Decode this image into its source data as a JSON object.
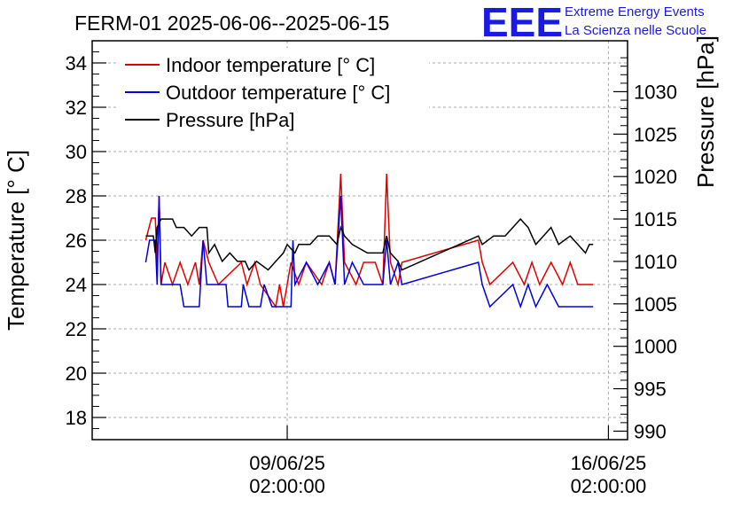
{
  "chart_data": {
    "type": "line",
    "title": "FERM-01 2025-06-06--2025-06-15",
    "ylabel_left": "Temperature [° C]",
    "ylabel_right": "Pressure [hPa]",
    "x_ticks": [
      {
        "date": "2025-06-09T02:00:00",
        "line1": "09/06/25",
        "line2": "02:00:00"
      },
      {
        "date": "2025-06-16T02:00:00",
        "line1": "16/06/25",
        "line2": "02:00:00"
      }
    ],
    "xlim": [
      "2025-06-04T20:00:00",
      "2025-06-16T12:00:00"
    ],
    "ylim_left": [
      17,
      35
    ],
    "yticks_left": [
      18,
      20,
      22,
      24,
      26,
      28,
      30,
      32,
      34
    ],
    "ylim_right": [
      989,
      1036
    ],
    "yticks_right": [
      990,
      995,
      1000,
      1005,
      1010,
      1015,
      1020,
      1025,
      1030
    ],
    "grid": true,
    "legend_position": "top-left",
    "series": [
      {
        "name": "Indoor temperature [° C]",
        "color": "#e00000",
        "axis": "left",
        "points": [
          [
            "2025-06-06T00:00:00",
            26
          ],
          [
            "2025-06-06T03:00:00",
            27
          ],
          [
            "2025-06-06T05:00:00",
            27
          ],
          [
            "2025-06-06T06:00:00",
            25
          ],
          [
            "2025-06-06T07:00:00",
            28
          ],
          [
            "2025-06-06T08:00:00",
            24
          ],
          [
            "2025-06-06T10:00:00",
            25
          ],
          [
            "2025-06-06T14:00:00",
            24
          ],
          [
            "2025-06-06T18:00:00",
            25
          ],
          [
            "2025-06-06T22:00:00",
            24
          ],
          [
            "2025-06-07T02:00:00",
            25
          ],
          [
            "2025-06-07T04:00:00",
            24
          ],
          [
            "2025-06-07T06:00:00",
            26
          ],
          [
            "2025-06-07T09:00:00",
            25
          ],
          [
            "2025-06-07T14:00:00",
            24
          ],
          [
            "2025-06-08T02:00:00",
            25
          ],
          [
            "2025-06-08T05:00:00",
            24
          ],
          [
            "2025-06-08T09:00:00",
            25
          ],
          [
            "2025-06-08T12:00:00",
            24
          ],
          [
            "2025-06-08T20:00:00",
            23
          ],
          [
            "2025-06-08T22:00:00",
            24
          ],
          [
            "2025-06-09T00:00:00",
            23
          ],
          [
            "2025-06-09T02:00:00",
            24
          ],
          [
            "2025-06-09T04:00:00",
            25
          ],
          [
            "2025-06-09T08:00:00",
            24
          ],
          [
            "2025-06-09T12:00:00",
            25
          ],
          [
            "2025-06-09T20:00:00",
            24
          ],
          [
            "2025-06-10T00:00:00",
            25
          ],
          [
            "2025-06-10T03:00:00",
            24
          ],
          [
            "2025-06-10T06:00:00",
            29
          ],
          [
            "2025-06-10T08:00:00",
            25
          ],
          [
            "2025-06-10T14:00:00",
            24
          ],
          [
            "2025-06-10T18:00:00",
            25
          ],
          [
            "2025-06-11T00:00:00",
            25
          ],
          [
            "2025-06-11T04:00:00",
            24
          ],
          [
            "2025-06-11T06:00:00",
            29
          ],
          [
            "2025-06-11T08:00:00",
            25
          ],
          [
            "2025-06-11T12:00:00",
            24
          ],
          [
            "2025-06-11T14:00:00",
            25
          ],
          [
            "2025-06-13T06:00:00",
            26
          ],
          [
            "2025-06-13T08:00:00",
            25
          ],
          [
            "2025-06-13T12:00:00",
            24
          ],
          [
            "2025-06-14T00:00:00",
            25
          ],
          [
            "2025-06-14T06:00:00",
            24
          ],
          [
            "2025-06-14T10:00:00",
            25
          ],
          [
            "2025-06-14T14:00:00",
            24
          ],
          [
            "2025-06-14T20:00:00",
            25
          ],
          [
            "2025-06-15T02:00:00",
            24
          ],
          [
            "2025-06-15T06:00:00",
            25
          ],
          [
            "2025-06-15T10:00:00",
            24
          ],
          [
            "2025-06-15T18:00:00",
            24
          ]
        ]
      },
      {
        "name": "Outdoor temperature [° C]",
        "color": "#0000e0",
        "axis": "left",
        "points": [
          [
            "2025-06-06T00:00:00",
            25
          ],
          [
            "2025-06-06T02:00:00",
            26
          ],
          [
            "2025-06-06T05:00:00",
            26
          ],
          [
            "2025-06-06T06:00:00",
            24
          ],
          [
            "2025-06-06T07:00:00",
            28
          ],
          [
            "2025-06-06T08:00:00",
            24
          ],
          [
            "2025-06-06T18:00:00",
            24
          ],
          [
            "2025-06-06T20:00:00",
            23
          ],
          [
            "2025-06-07T04:00:00",
            23
          ],
          [
            "2025-06-07T06:00:00",
            26
          ],
          [
            "2025-06-07T08:00:00",
            24
          ],
          [
            "2025-06-07T18:00:00",
            24
          ],
          [
            "2025-06-07T19:00:00",
            23
          ],
          [
            "2025-06-08T02:00:00",
            23
          ],
          [
            "2025-06-08T03:00:00",
            24
          ],
          [
            "2025-06-08T06:00:00",
            23
          ],
          [
            "2025-06-08T12:00:00",
            23
          ],
          [
            "2025-06-08T14:00:00",
            24
          ],
          [
            "2025-06-08T18:00:00",
            23
          ],
          [
            "2025-06-09T04:00:00",
            23
          ],
          [
            "2025-06-09T05:00:00",
            26
          ],
          [
            "2025-06-09T06:00:00",
            24
          ],
          [
            "2025-06-09T12:00:00",
            25
          ],
          [
            "2025-06-09T18:00:00",
            24
          ],
          [
            "2025-06-10T00:00:00",
            25
          ],
          [
            "2025-06-10T03:00:00",
            24
          ],
          [
            "2025-06-10T06:00:00",
            28
          ],
          [
            "2025-06-10T08:00:00",
            24
          ],
          [
            "2025-06-10T12:00:00",
            25
          ],
          [
            "2025-06-10T18:00:00",
            24
          ],
          [
            "2025-06-11T04:00:00",
            24
          ],
          [
            "2025-06-11T06:00:00",
            26
          ],
          [
            "2025-06-11T08:00:00",
            24
          ],
          [
            "2025-06-11T12:00:00",
            25
          ],
          [
            "2025-06-11T14:00:00",
            24
          ],
          [
            "2025-06-13T06:00:00",
            25
          ],
          [
            "2025-06-13T08:00:00",
            24
          ],
          [
            "2025-06-13T12:00:00",
            23
          ],
          [
            "2025-06-14T00:00:00",
            24
          ],
          [
            "2025-06-14T04:00:00",
            23
          ],
          [
            "2025-06-14T08:00:00",
            24
          ],
          [
            "2025-06-14T12:00:00",
            23
          ],
          [
            "2025-06-14T18:00:00",
            24
          ],
          [
            "2025-06-15T00:00:00",
            23
          ],
          [
            "2025-06-15T18:00:00",
            23
          ]
        ]
      },
      {
        "name": "Pressure [hPa]",
        "color": "#000000",
        "axis": "right",
        "points": [
          [
            "2025-06-06T00:00:00",
            1013
          ],
          [
            "2025-06-06T04:00:00",
            1013
          ],
          [
            "2025-06-06T05:00:00",
            1011
          ],
          [
            "2025-06-06T06:00:00",
            1014
          ],
          [
            "2025-06-06T08:00:00",
            1015
          ],
          [
            "2025-06-06T14:00:00",
            1015
          ],
          [
            "2025-06-06T16:00:00",
            1014
          ],
          [
            "2025-06-06T20:00:00",
            1014
          ],
          [
            "2025-06-07T00:00:00",
            1013
          ],
          [
            "2025-06-07T04:00:00",
            1014
          ],
          [
            "2025-06-07T08:00:00",
            1014
          ],
          [
            "2025-06-07T09:00:00",
            1011
          ],
          [
            "2025-06-07T12:00:00",
            1012
          ],
          [
            "2025-06-07T16:00:00",
            1010
          ],
          [
            "2025-06-07T20:00:00",
            1011
          ],
          [
            "2025-06-08T00:00:00",
            1010
          ],
          [
            "2025-06-08T04:00:00",
            1010
          ],
          [
            "2025-06-08T06:00:00",
            1009
          ],
          [
            "2025-06-08T10:00:00",
            1010
          ],
          [
            "2025-06-08T16:00:00",
            1009
          ],
          [
            "2025-06-08T20:00:00",
            1010
          ],
          [
            "2025-06-09T00:00:00",
            1011
          ],
          [
            "2025-06-09T02:00:00",
            1012
          ],
          [
            "2025-06-09T06:00:00",
            1011
          ],
          [
            "2025-06-09T08:00:00",
            1012
          ],
          [
            "2025-06-09T14:00:00",
            1012
          ],
          [
            "2025-06-09T18:00:00",
            1013
          ],
          [
            "2025-06-10T00:00:00",
            1013
          ],
          [
            "2025-06-10T04:00:00",
            1012
          ],
          [
            "2025-06-10T06:00:00",
            1014
          ],
          [
            "2025-06-10T08:00:00",
            1013
          ],
          [
            "2025-06-10T12:00:00",
            1012
          ],
          [
            "2025-06-10T20:00:00",
            1011
          ],
          [
            "2025-06-11T04:00:00",
            1011
          ],
          [
            "2025-06-11T06:00:00",
            1013
          ],
          [
            "2025-06-11T08:00:00",
            1011
          ],
          [
            "2025-06-11T12:00:00",
            1010
          ],
          [
            "2025-06-11T14:00:00",
            1009
          ],
          [
            "2025-06-13T06:00:00",
            1013
          ],
          [
            "2025-06-13T08:00:00",
            1012
          ],
          [
            "2025-06-13T14:00:00",
            1013
          ],
          [
            "2025-06-13T20:00:00",
            1013
          ],
          [
            "2025-06-14T00:00:00",
            1014
          ],
          [
            "2025-06-14T04:00:00",
            1015
          ],
          [
            "2025-06-14T08:00:00",
            1014
          ],
          [
            "2025-06-14T12:00:00",
            1012
          ],
          [
            "2025-06-14T16:00:00",
            1013
          ],
          [
            "2025-06-14T20:00:00",
            1014
          ],
          [
            "2025-06-15T00:00:00",
            1012
          ],
          [
            "2025-06-15T06:00:00",
            1013
          ],
          [
            "2025-06-15T10:00:00",
            1012
          ],
          [
            "2025-06-15T14:00:00",
            1011
          ],
          [
            "2025-06-15T16:00:00",
            1012
          ],
          [
            "2025-06-15T18:00:00",
            1012
          ]
        ]
      }
    ]
  },
  "logo": {
    "mark": "EEE",
    "line1": "Extreme Energy Events",
    "line2": "La Scienza nelle Scuole",
    "color": "#1a1ae6"
  }
}
